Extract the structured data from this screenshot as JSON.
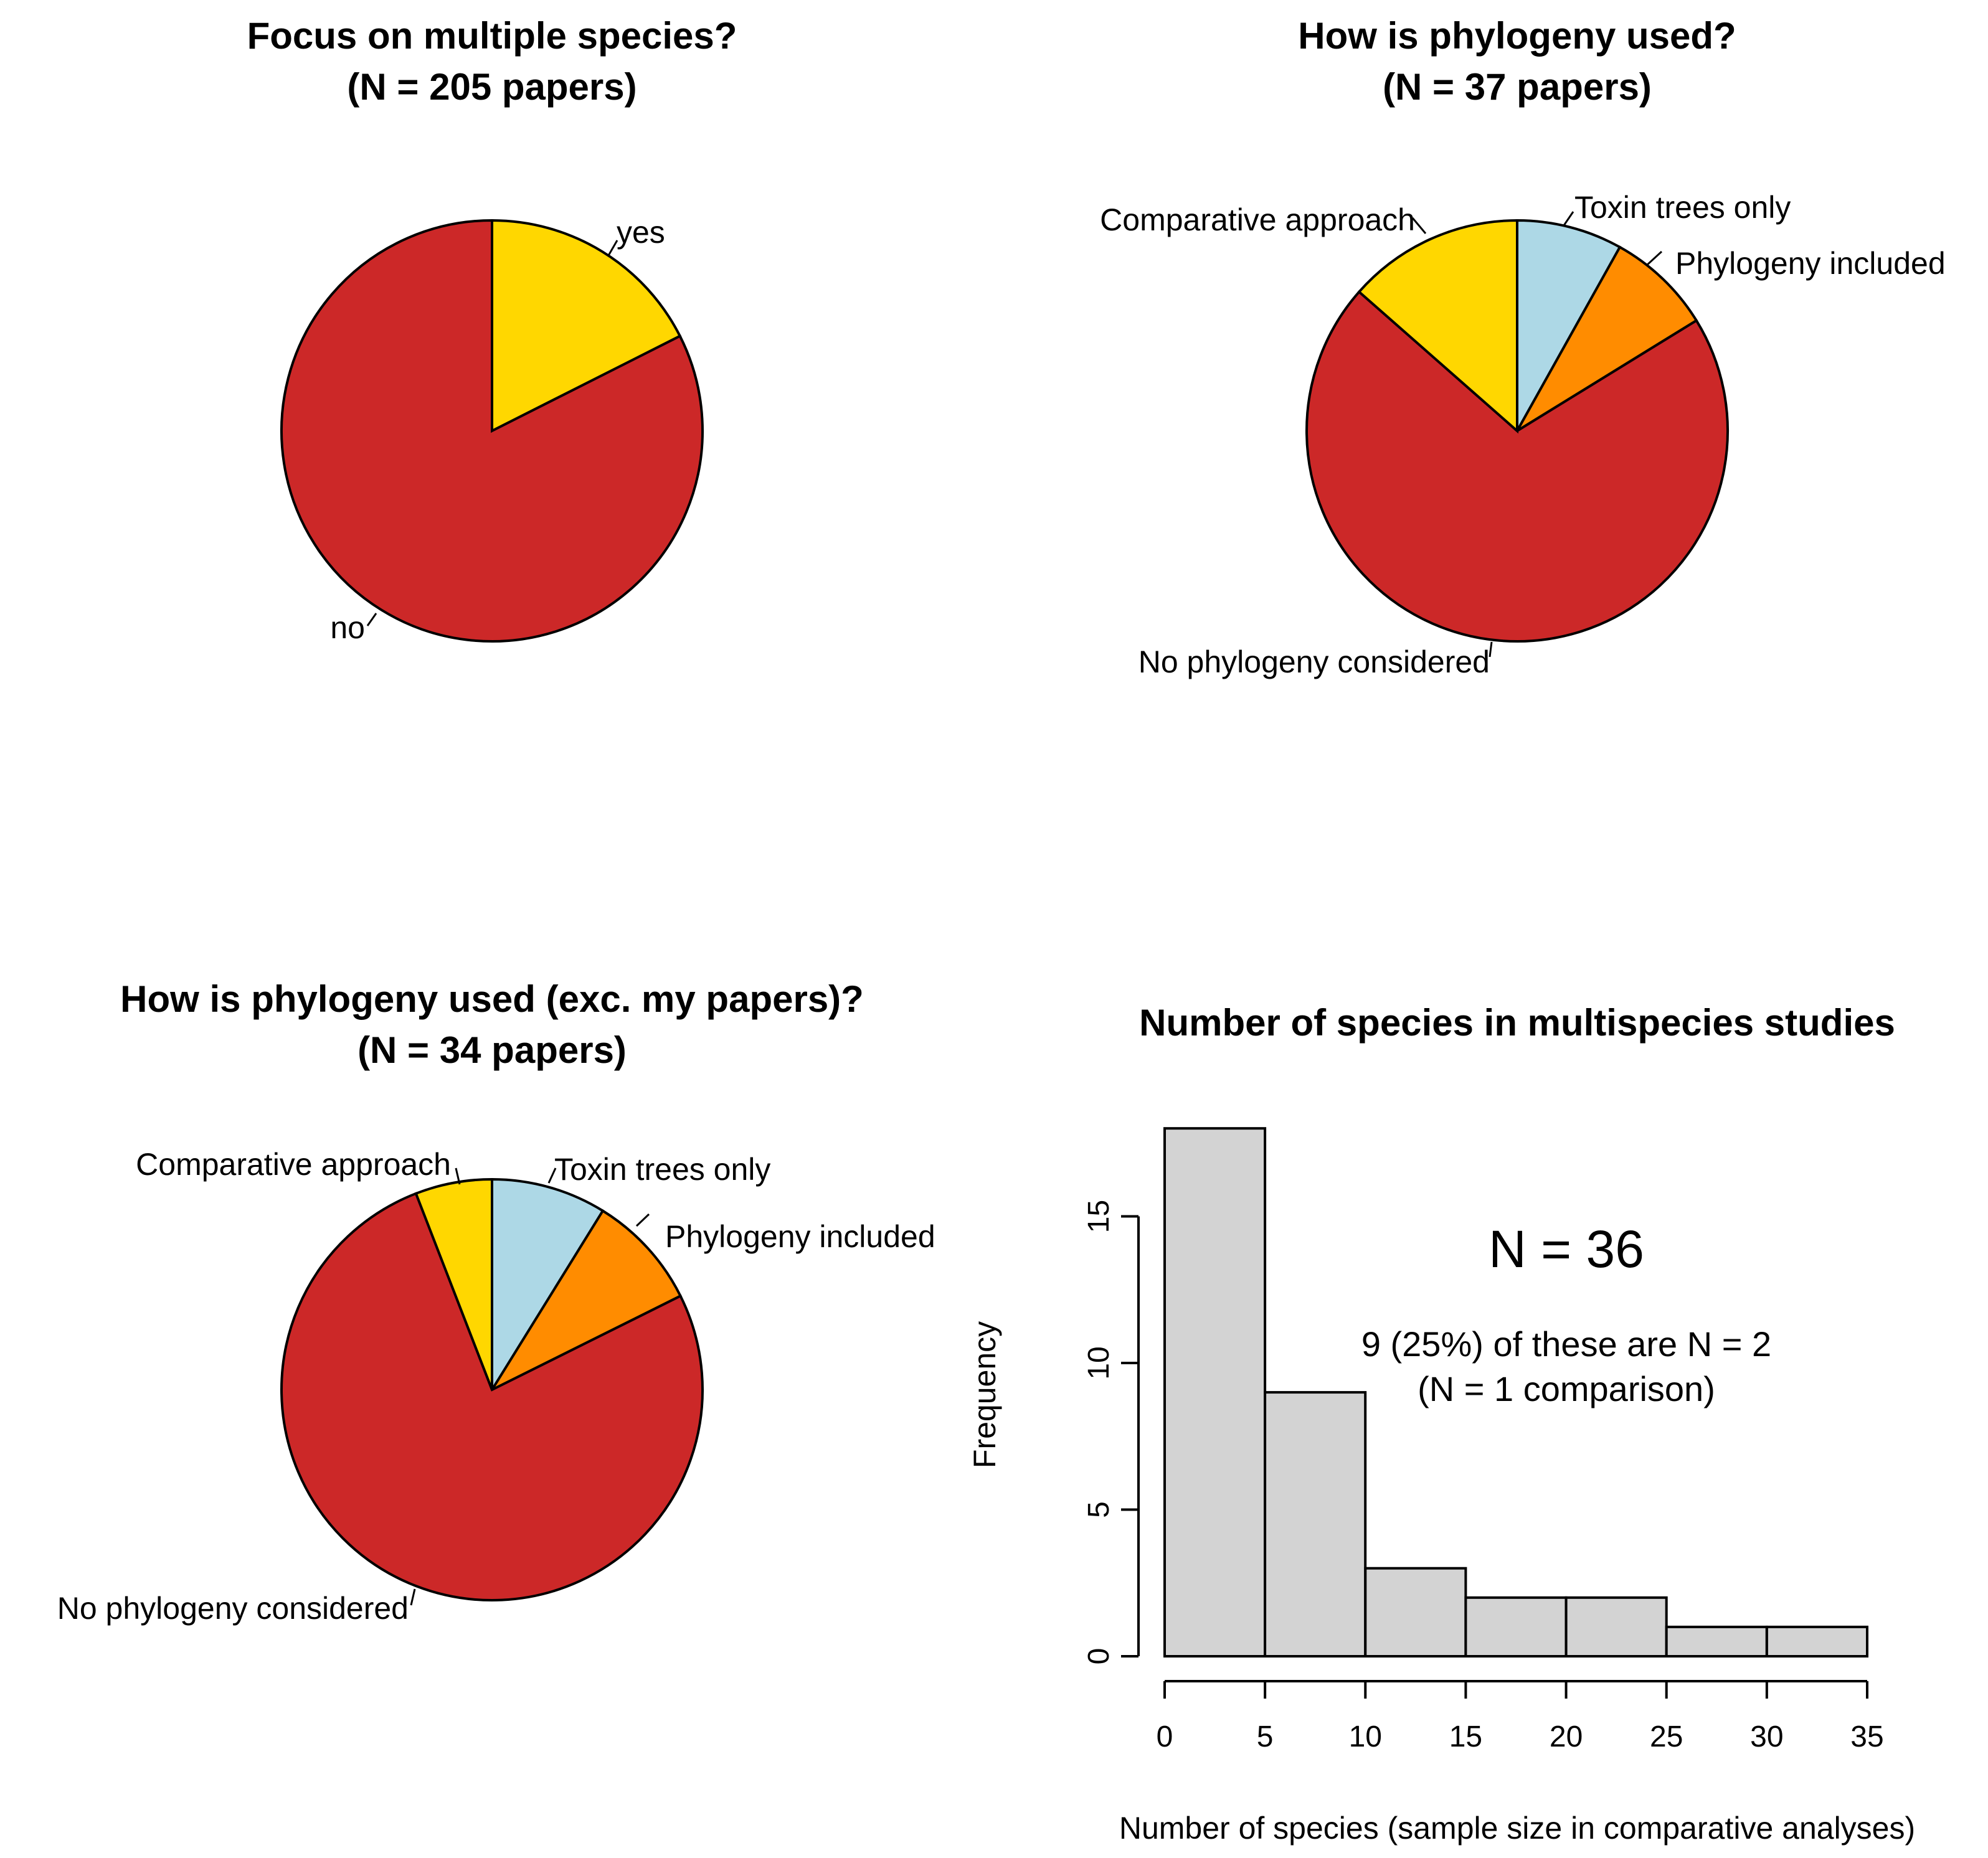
{
  "colors": {
    "red": "#cc2828",
    "yellow": "#ffd700",
    "lightblue": "#add8e6",
    "orange": "#ff8c00",
    "bar_fill": "#d3d3d3"
  },
  "chart_data": [
    {
      "type": "pie",
      "title": "Focus on multiple species?",
      "subtitle": "(N = 205 papers)",
      "categories": [
        "yes",
        "no"
      ],
      "values": [
        36,
        169
      ],
      "colors": [
        "#ffd700",
        "#cc2828"
      ]
    },
    {
      "type": "pie",
      "title": "How is phylogeny used?",
      "subtitle": "(N = 37 papers)",
      "categories": [
        "Toxin trees only",
        "Phylogeny included",
        "No phylogeny considered",
        "Comparative approach"
      ],
      "values": [
        3,
        3,
        26,
        5
      ],
      "colors": [
        "#add8e6",
        "#ff8c00",
        "#cc2828",
        "#ffd700"
      ]
    },
    {
      "type": "pie",
      "title": "How is phylogeny used (exc. my papers)?",
      "subtitle": "(N = 34 papers)",
      "categories": [
        "Toxin trees only",
        "Phylogeny included",
        "No phylogeny considered",
        "Comparative approach"
      ],
      "values": [
        3,
        3,
        26,
        2
      ],
      "colors": [
        "#add8e6",
        "#ff8c00",
        "#cc2828",
        "#ffd700"
      ]
    },
    {
      "type": "bar",
      "subtype": "histogram",
      "title": "Number of species in multispecies studies",
      "xlabel": "Number of species (sample size in comparative analyses)",
      "ylabel": "Frequency",
      "bins": [
        [
          0,
          5
        ],
        [
          5,
          10
        ],
        [
          10,
          15
        ],
        [
          15,
          20
        ],
        [
          20,
          25
        ],
        [
          25,
          30
        ],
        [
          30,
          35
        ]
      ],
      "values": [
        18,
        9,
        3,
        2,
        2,
        1,
        1
      ],
      "xticks": [
        0,
        5,
        10,
        15,
        20,
        25,
        30,
        35
      ],
      "yticks": [
        0,
        5,
        10,
        15
      ],
      "xlim": [
        0,
        35
      ],
      "ylim": [
        0,
        18
      ],
      "annotations": [
        "N = 36",
        "9 (25%) of these are N = 2",
        "(N = 1 comparison)"
      ]
    }
  ]
}
